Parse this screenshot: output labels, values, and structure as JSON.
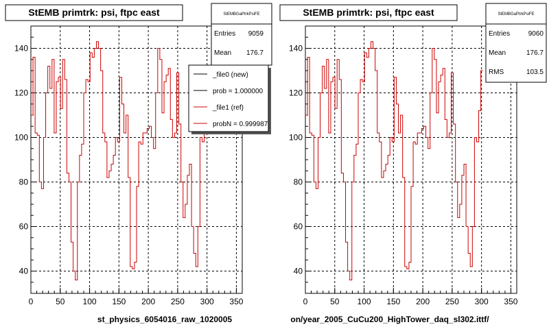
{
  "chart_data": [
    {
      "type": "line",
      "title": "StEMB primtrk: psi, ftpc east",
      "file_label": "st_physics_6054016_raw_1020005",
      "xlim": [
        0,
        360
      ],
      "ylim": [
        30,
        150
      ],
      "x_ticks": [
        0,
        50,
        100,
        150,
        200,
        250,
        300,
        350
      ],
      "y_ticks": [
        40,
        60,
        80,
        100,
        120,
        140
      ],
      "grid": true,
      "stats": {
        "header": "StEMBGaPtrkPsiFE",
        "rows": [
          {
            "label": "Entries",
            "value": "9059"
          },
          {
            "label": "Mean",
            "value": "176.7"
          }
        ]
      },
      "legend": {
        "placement": "top-right",
        "entries": [
          {
            "label": "_file0 (new)",
            "color": "#000000"
          },
          {
            "label": "prob = 1.000000",
            "color": "#000000"
          },
          {
            "label": "_file1 (ref)",
            "color": "#cc0000"
          },
          {
            "label": "probN = 0.999987",
            "color": "#cc0000"
          }
        ]
      },
      "series": [
        {
          "color": "#cc0000",
          "bin_width": 3.6,
          "values": [
            110,
            136,
            102,
            101,
            80,
            77,
            100,
            120,
            132,
            122,
            135,
            102,
            125,
            127,
            113,
            135,
            126,
            84,
            80,
            53,
            40,
            36,
            80,
            92,
            97,
            120,
            126,
            125,
            138,
            136,
            140,
            143,
            140,
            130,
            102,
            98,
            82,
            85,
            88,
            92,
            100,
            98,
            127,
            115,
            102,
            110,
            82,
            42,
            41,
            44,
            78,
            98,
            97,
            102,
            102,
            104,
            105,
            100,
            95,
            120,
            140,
            135,
            111,
            125,
            128,
            131,
            108,
            100,
            102,
            129,
            106,
            80,
            64,
            70,
            83,
            88,
            60,
            48,
            42,
            60,
            100,
            98,
            112,
            130
          ]
        }
      ]
    },
    {
      "type": "line",
      "title": "StEMB primtrk: psi, ftpc east",
      "file_label": "on/year_2005_CuCu200_HighTower_daq_sl302.ittf/",
      "xlim": [
        0,
        360
      ],
      "ylim": [
        30,
        150
      ],
      "x_ticks": [
        0,
        50,
        100,
        150,
        200,
        250,
        300,
        350
      ],
      "y_ticks": [
        40,
        60,
        80,
        100,
        120,
        140
      ],
      "grid": true,
      "stats": {
        "header": "StEMBGaPtrkPsiFE",
        "rows": [
          {
            "label": "Entries",
            "value": "9060"
          },
          {
            "label": "Mean",
            "value": "176.7"
          },
          {
            "label": "RMS",
            "value": "103.5"
          }
        ]
      },
      "series": [
        {
          "color": "#cc0000",
          "bin_width": 3.6,
          "values": [
            110,
            136,
            102,
            101,
            80,
            77,
            100,
            120,
            132,
            122,
            135,
            102,
            125,
            127,
            113,
            135,
            126,
            84,
            80,
            53,
            40,
            36,
            80,
            92,
            97,
            120,
            126,
            125,
            138,
            136,
            140,
            143,
            140,
            130,
            102,
            98,
            82,
            85,
            88,
            92,
            100,
            98,
            127,
            115,
            102,
            110,
            82,
            42,
            41,
            44,
            78,
            98,
            97,
            102,
            102,
            104,
            105,
            100,
            95,
            120,
            140,
            135,
            111,
            125,
            128,
            131,
            108,
            100,
            102,
            129,
            106,
            80,
            64,
            70,
            83,
            88,
            60,
            48,
            42,
            60,
            100,
            98,
            112,
            130
          ]
        }
      ]
    }
  ]
}
